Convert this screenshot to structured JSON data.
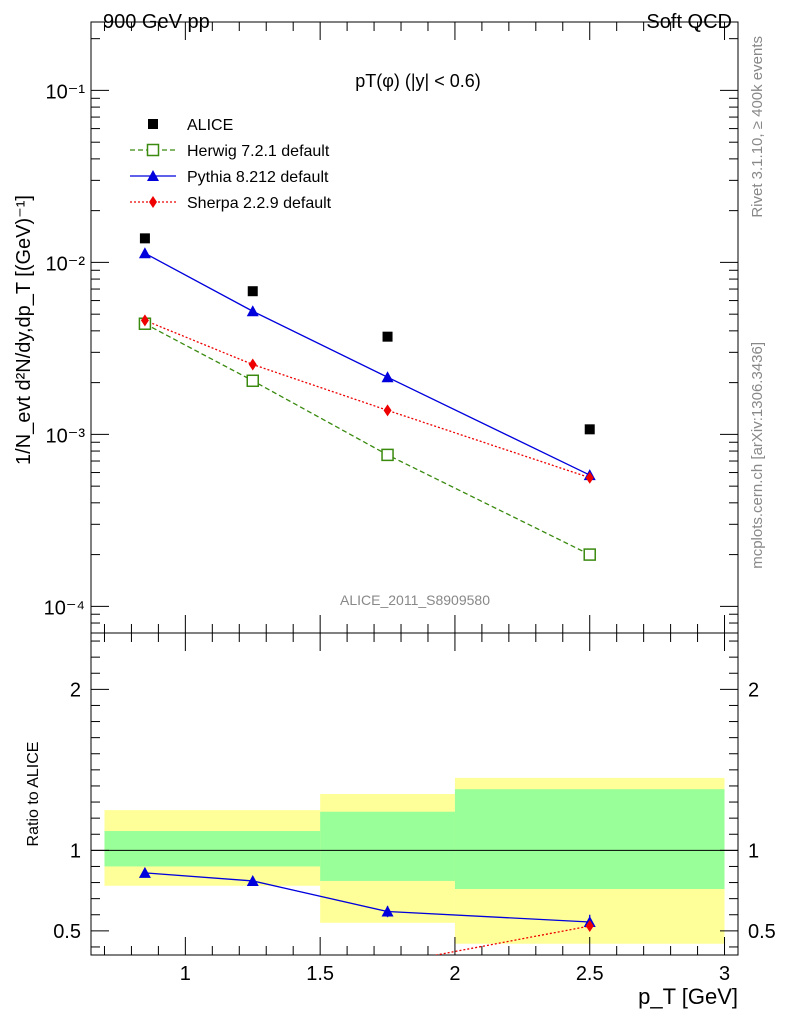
{
  "header": {
    "left_title": "900 GeV pp",
    "right_title": "Soft QCD"
  },
  "side_labels": {
    "rivet": "Rivet 3.1.10, ≥ 400k events",
    "mcplots": "mcplots.cern.ch [arXiv:1306.3436]"
  },
  "chart_data": [
    {
      "type": "line",
      "title": "pT(φ) (|y| < 0.6)",
      "watermark": "ALICE_2011_S8909580",
      "ylabel": "1/N_evt d²N/dy,dp_T [(GeV)⁻¹]",
      "yscale": "log",
      "xlim": [
        0.65,
        3.05
      ],
      "ylim": [
        7e-05,
        0.25
      ],
      "legend_placement": "top-left",
      "y_ticks": [
        {
          "value": 0.1,
          "label": "10⁻¹"
        },
        {
          "value": 0.01,
          "label": "10⁻²"
        },
        {
          "value": 0.001,
          "label": "10⁻³"
        },
        {
          "value": 0.0001,
          "label": "10⁻⁴"
        }
      ],
      "series": [
        {
          "name": "ALICE",
          "style": "square-marker",
          "color": "#000000",
          "x": [
            0.85,
            1.25,
            1.75,
            2.5
          ],
          "y": [
            0.0138,
            0.0068,
            0.0037,
            0.00107
          ]
        },
        {
          "name": "Herwig 7.2.1 default",
          "style": "dashed-open-square",
          "color": "#3a8a0f",
          "x": [
            0.85,
            1.25,
            1.75,
            2.5
          ],
          "y": [
            0.0044,
            0.00205,
            0.00076,
            0.0002
          ]
        },
        {
          "name": "Pythia 8.212 default",
          "style": "solid-triangle",
          "color": "#0000dd",
          "x": [
            0.85,
            1.25,
            1.75,
            2.5
          ],
          "y": [
            0.0113,
            0.0052,
            0.00215,
            0.00058
          ]
        },
        {
          "name": "Sherpa 2.2.9 default",
          "style": "dotted-diamond",
          "color": "#ee0000",
          "x": [
            0.85,
            1.25,
            1.75,
            2.5
          ],
          "y": [
            0.0046,
            0.00255,
            0.00138,
            0.00056
          ]
        }
      ]
    },
    {
      "type": "line",
      "ylabel": "Ratio to ALICE",
      "xlabel": "p_T [GeV]",
      "xlim": [
        0.65,
        3.05
      ],
      "ylim": [
        0.35,
        2.35
      ],
      "x_tick_labels": [
        "1",
        "1.5",
        "2",
        "2.5",
        "3"
      ],
      "y_tick_labels": [
        "0.5",
        "1",
        "2"
      ],
      "bands": [
        {
          "x0": 0.7,
          "x1": 1.5,
          "yellow": [
            0.78,
            1.25
          ],
          "green": [
            0.9,
            1.12
          ]
        },
        {
          "x0": 1.5,
          "x1": 2.0,
          "yellow": [
            0.55,
            1.35
          ],
          "green": [
            0.81,
            1.24
          ]
        },
        {
          "x0": 2.0,
          "x1": 3.0,
          "yellow": [
            0.42,
            1.45
          ],
          "green": [
            0.76,
            1.38
          ]
        }
      ],
      "series": [
        {
          "name": "Pythia 8.212 default",
          "color": "#0000dd",
          "x": [
            0.85,
            1.25,
            1.75,
            2.5
          ],
          "y": [
            0.86,
            0.81,
            0.62,
            0.555
          ],
          "err": [
            0.02,
            0.025,
            0.035,
            0.045
          ]
        },
        {
          "name": "Sherpa 2.2.9 default",
          "color": "#ee0000",
          "x": [
            1.9,
            2.5
          ],
          "y": [
            0.34,
            0.53
          ],
          "err": [
            0,
            0.03
          ]
        }
      ]
    }
  ]
}
